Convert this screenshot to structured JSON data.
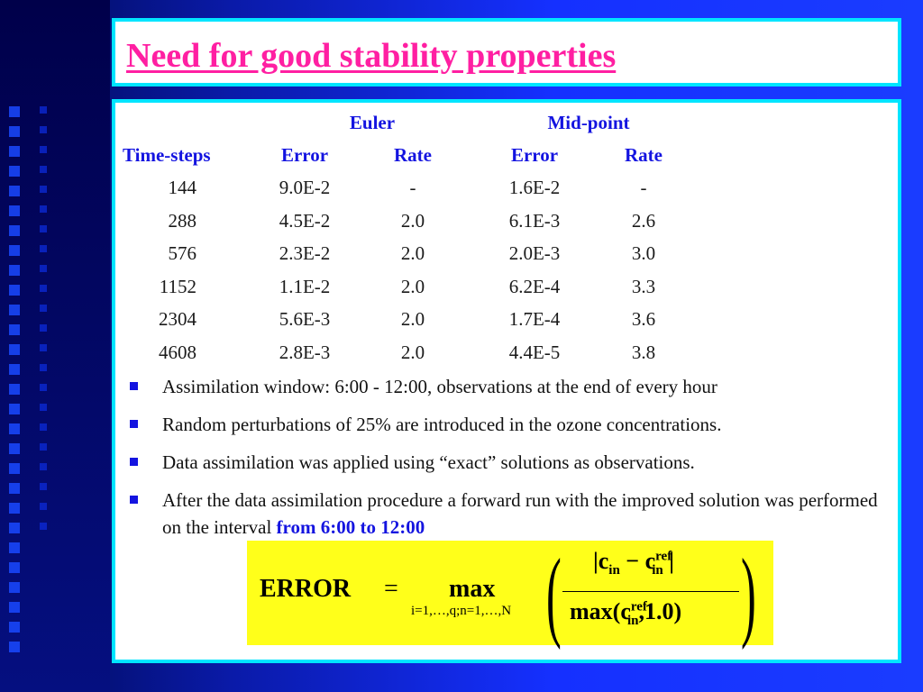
{
  "title": "Need for good stability properties",
  "table": {
    "group_headers": {
      "euler": "Euler",
      "midpoint": "Mid-point"
    },
    "columns": [
      "Time-steps",
      "Error",
      "Rate",
      "Error",
      "Rate"
    ],
    "rows": [
      [
        "144",
        "9.0E-2",
        "-",
        "1.6E-2",
        "-"
      ],
      [
        "288",
        "4.5E-2",
        "2.0",
        "6.1E-3",
        "2.6"
      ],
      [
        "576",
        "2.3E-2",
        "2.0",
        "2.0E-3",
        "3.0"
      ],
      [
        "1152",
        "1.1E-2",
        "2.0",
        "6.2E-4",
        "3.3"
      ],
      [
        "2304",
        "5.6E-3",
        "2.0",
        "1.7E-4",
        "3.6"
      ],
      [
        "4608",
        "2.8E-3",
        "2.0",
        "4.4E-5",
        "3.8"
      ]
    ]
  },
  "bullets": [
    {
      "text": "Assimilation window: 6:00 - 12:00, observations at the end of every hour",
      "highlight": ""
    },
    {
      "text": "Random perturbations of 25% are introduced in the ozone concentrations.",
      "highlight": ""
    },
    {
      "text": "Data assimilation was applied using “exact” solutions as observations.",
      "highlight": ""
    },
    {
      "text": "After the data assimilation procedure a forward run with the improved solution was performed on the interval ",
      "highlight": "from 6:00 to 12:00"
    }
  ],
  "formula": {
    "lhs": "ERROR",
    "eq": "=",
    "max": "max",
    "max_sub": "i=1,…,q;n=1,…,N",
    "num_c": "c",
    "num_sub": "in",
    "num_minus": "−",
    "num_c_ref": "c",
    "num_ref_sup": "ref",
    "num_ref_sub": "in",
    "den_max": "max",
    "den_c": "c",
    "den_sup": "ref",
    "den_sub": "in",
    "den_rest": ",1.0"
  },
  "colors": {
    "accent": "#1414e0",
    "title": "#ff1fa2",
    "border": "#00e5ff",
    "formula_bg": "#ffff1a"
  }
}
